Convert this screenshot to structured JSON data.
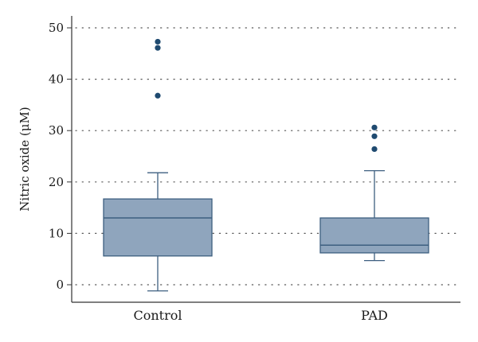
{
  "chart_data": {
    "type": "box",
    "title": "",
    "xlabel": "",
    "ylabel": "Nitric oxide (μM)",
    "ylim": [
      -3,
      53
    ],
    "yticks": [
      0,
      10,
      20,
      30,
      40,
      50
    ],
    "grid": "dotted horizontal",
    "categories": [
      "Control",
      "PAD"
    ],
    "boxes": [
      {
        "category": "Control",
        "whisker_low": -1.2,
        "q1": 5.6,
        "median": 13.0,
        "q3": 16.7,
        "whisker_high": 21.8,
        "outliers": [
          36.8,
          46.1,
          47.3
        ]
      },
      {
        "category": "PAD",
        "whisker_low": 4.7,
        "q1": 6.2,
        "median": 7.7,
        "q3": 13.0,
        "whisker_high": 22.2,
        "outliers": [
          26.4,
          28.9,
          30.6
        ]
      }
    ],
    "colors": {
      "box_fill": "#8fa5bd",
      "box_stroke": "#3d5f80",
      "outlier": "#1f4a70",
      "grid": "#555555",
      "axis": "#333333"
    }
  }
}
